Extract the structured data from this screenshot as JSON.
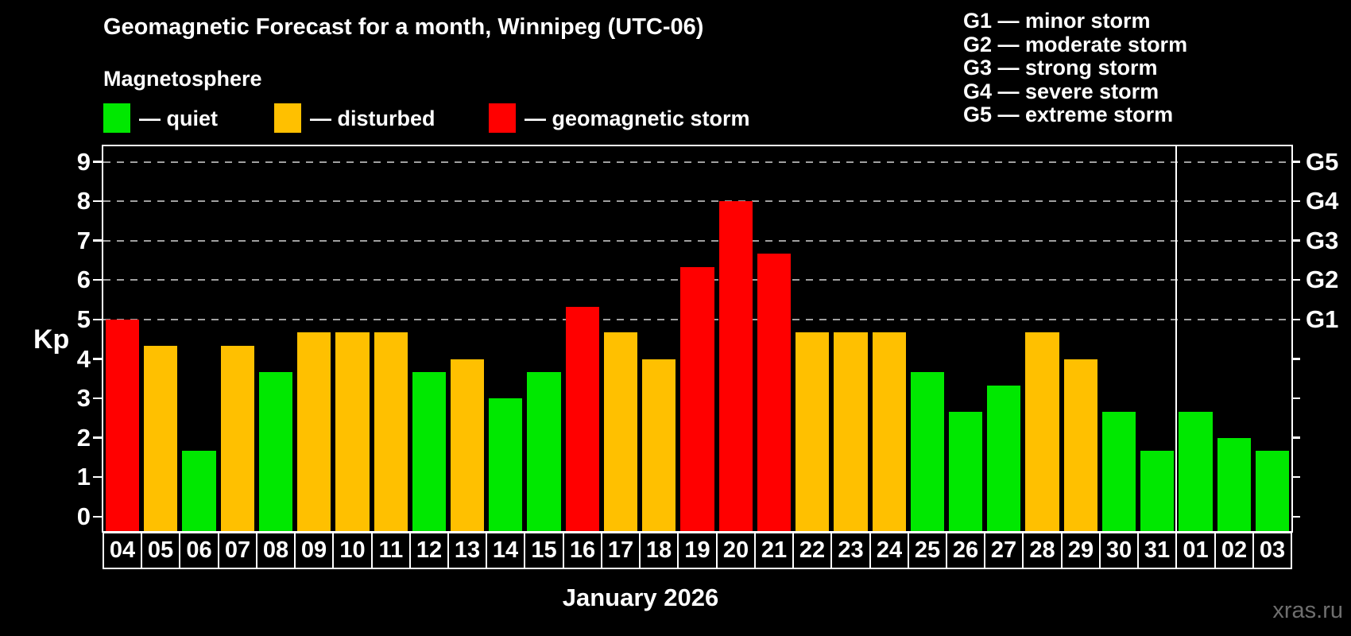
{
  "header": {
    "title": "Geomagnetic Forecast for a month, Winnipeg (UTC-06)",
    "subtitle": "Magnetosphere"
  },
  "legend": {
    "items": [
      {
        "key": "quiet",
        "label": "— quiet",
        "color": "#00e800"
      },
      {
        "key": "disturbed",
        "label": "— disturbed",
        "color": "#ffc000"
      },
      {
        "key": "storm",
        "label": "— geomagnetic storm",
        "color": "#ff0000"
      }
    ]
  },
  "g_legend": {
    "lines": [
      "G1 — minor storm",
      "G2 — moderate storm",
      "G3 — strong storm",
      "G4 — severe storm",
      "G5 — extreme storm"
    ]
  },
  "chart_data": {
    "type": "bar",
    "title": "Geomagnetic Forecast for a month, Winnipeg (UTC-06)",
    "subtitle": "Magnetosphere",
    "ylabel": "Kp",
    "xlabel": "January 2026",
    "ylim": [
      -0.37,
      9.4
    ],
    "yticks": [
      0,
      1,
      2,
      3,
      4,
      5,
      6,
      7,
      8,
      9
    ],
    "gridlines_at": [
      5,
      6,
      7,
      8,
      9
    ],
    "grid": "horizontal dashed at storm thresholds only",
    "legend_position": "top-left",
    "right_axis_labels": [
      {
        "kp": 5,
        "label": "G1"
      },
      {
        "kp": 6,
        "label": "G2"
      },
      {
        "kp": 7,
        "label": "G3"
      },
      {
        "kp": 8,
        "label": "G4"
      },
      {
        "kp": 9,
        "label": "G5"
      }
    ],
    "level_colors": {
      "quiet": "#00e800",
      "disturbed": "#ffc000",
      "storm": "#ff0000"
    },
    "month_separator_after_index": 27,
    "categories": [
      "04",
      "05",
      "06",
      "07",
      "08",
      "09",
      "10",
      "11",
      "12",
      "13",
      "14",
      "15",
      "16",
      "17",
      "18",
      "19",
      "20",
      "21",
      "22",
      "23",
      "24",
      "25",
      "26",
      "27",
      "28",
      "29",
      "30",
      "31",
      "01",
      "02",
      "03"
    ],
    "values": [
      5.0,
      4.33,
      1.67,
      4.33,
      3.67,
      4.67,
      4.67,
      4.67,
      3.67,
      4.0,
      3.0,
      3.67,
      5.33,
      4.67,
      4.0,
      6.33,
      8.0,
      6.67,
      4.67,
      4.67,
      4.67,
      3.67,
      2.67,
      3.33,
      4.67,
      4.0,
      2.67,
      1.67,
      2.67,
      2.0,
      1.67
    ],
    "levels": [
      "storm",
      "disturbed",
      "quiet",
      "disturbed",
      "quiet",
      "disturbed",
      "disturbed",
      "disturbed",
      "quiet",
      "disturbed",
      "quiet",
      "quiet",
      "storm",
      "disturbed",
      "disturbed",
      "storm",
      "storm",
      "storm",
      "disturbed",
      "disturbed",
      "disturbed",
      "quiet",
      "quiet",
      "quiet",
      "disturbed",
      "disturbed",
      "quiet",
      "quiet",
      "quiet",
      "quiet",
      "quiet"
    ]
  },
  "axis": {
    "kp_label": "Kp"
  },
  "footer": {
    "month_label": "January 2026",
    "watermark": "xras.ru"
  }
}
